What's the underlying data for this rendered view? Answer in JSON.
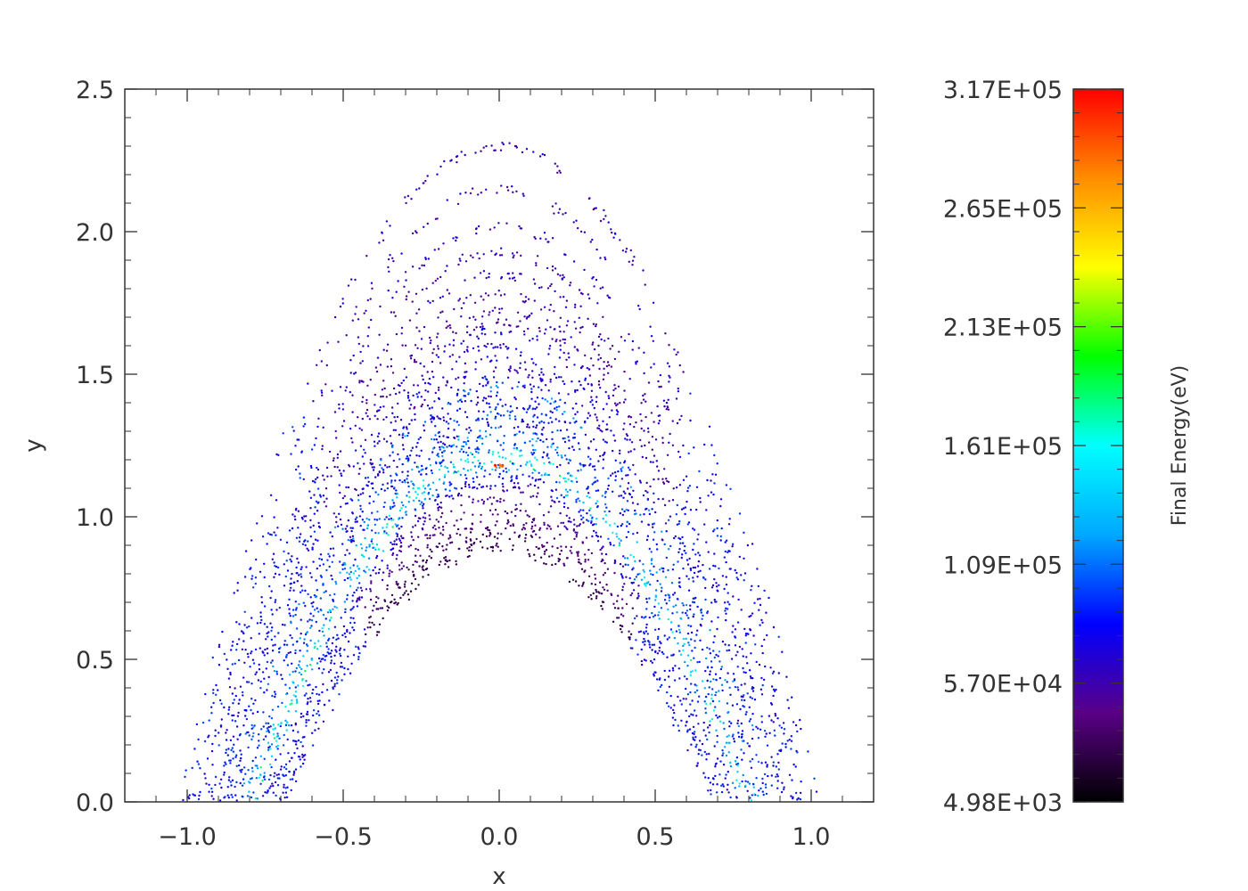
{
  "chart_data": {
    "type": "scatter",
    "xlabel": "x",
    "ylabel": "y",
    "xlim": [
      -1.2,
      1.2
    ],
    "ylim": [
      0.0,
      2.5
    ],
    "x_ticks": [
      "−1.0",
      "−0.5",
      "0.0",
      "0.5",
      "1.0"
    ],
    "x_tick_values": [
      -1.0,
      -0.5,
      0.0,
      0.5,
      1.0
    ],
    "y_ticks": [
      "0.0",
      "0.5",
      "1.0",
      "1.5",
      "2.0",
      "2.5"
    ],
    "y_tick_values": [
      0.0,
      0.5,
      1.0,
      1.5,
      2.0,
      2.5
    ],
    "grid": false,
    "colorbar": {
      "title": "Final Energy(eV)",
      "labels": [
        "4.98E+03",
        "5.70E+04",
        "1.09E+05",
        "1.61E+05",
        "2.13E+05",
        "2.65E+05",
        "3.17E+05"
      ],
      "values": [
        4980,
        57000,
        109000,
        161000,
        213000,
        265000,
        317000
      ],
      "range": [
        4980,
        317000
      ],
      "colormap": [
        "#000000",
        "#5a0087",
        "#0000ff",
        "#00a8ff",
        "#00ffff",
        "#00ff00",
        "#ffff00",
        "#ff8c00",
        "#ff0000"
      ]
    },
    "arcs": [
      {
        "apex_y": 2.3,
        "halfwidth": 1.02,
        "energy": 60000
      },
      {
        "apex_y": 2.15,
        "halfwidth": 1.0,
        "energy": 62000
      },
      {
        "apex_y": 2.02,
        "halfwidth": 0.99,
        "energy": 64000
      },
      {
        "apex_y": 1.93,
        "halfwidth": 0.98,
        "energy": 56000
      },
      {
        "apex_y": 1.85,
        "halfwidth": 0.97,
        "energy": 58000
      },
      {
        "apex_y": 1.78,
        "halfwidth": 0.96,
        "energy": 52000
      },
      {
        "apex_y": 1.72,
        "halfwidth": 0.95,
        "energy": 54000
      },
      {
        "apex_y": 1.68,
        "halfwidth": 0.94,
        "energy": 48000
      },
      {
        "apex_y": 1.65,
        "halfwidth": 0.93,
        "energy": 70000
      },
      {
        "apex_y": 1.6,
        "halfwidth": 0.92,
        "energy": 62000
      },
      {
        "apex_y": 1.56,
        "halfwidth": 0.91,
        "energy": 74000
      },
      {
        "apex_y": 1.52,
        "halfwidth": 0.9,
        "energy": 58000
      },
      {
        "apex_y": 1.48,
        "halfwidth": 0.89,
        "energy": 78000
      },
      {
        "apex_y": 1.45,
        "halfwidth": 0.88,
        "energy": 100000
      },
      {
        "apex_y": 1.42,
        "halfwidth": 0.87,
        "energy": 68000
      },
      {
        "apex_y": 1.39,
        "halfwidth": 0.86,
        "energy": 84000
      },
      {
        "apex_y": 1.36,
        "halfwidth": 0.85,
        "energy": 96000
      },
      {
        "apex_y": 1.33,
        "halfwidth": 0.84,
        "energy": 72000
      },
      {
        "apex_y": 1.3,
        "halfwidth": 0.83,
        "energy": 104000
      },
      {
        "apex_y": 1.28,
        "halfwidth": 0.82,
        "energy": 112000
      },
      {
        "apex_y": 1.25,
        "halfwidth": 0.81,
        "energy": 90000
      },
      {
        "apex_y": 1.23,
        "halfwidth": 0.8,
        "energy": 140000
      },
      {
        "apex_y": 1.2,
        "halfwidth": 0.79,
        "energy": 150000
      },
      {
        "apex_y": 1.18,
        "halfwidth": 0.78,
        "energy": 120000
      },
      {
        "apex_y": 1.15,
        "halfwidth": 0.77,
        "energy": 86000
      },
      {
        "apex_y": 1.12,
        "halfwidth": 0.76,
        "energy": 70000
      },
      {
        "apex_y": 1.1,
        "halfwidth": 0.75,
        "energy": 58000
      },
      {
        "apex_y": 1.06,
        "halfwidth": 0.74,
        "energy": 46000
      },
      {
        "apex_y": 1.02,
        "halfwidth": 0.73,
        "energy": 40000
      },
      {
        "apex_y": 0.98,
        "halfwidth": 0.72,
        "energy": 36000
      },
      {
        "apex_y": 0.95,
        "halfwidth": 0.71,
        "energy": 32000
      },
      {
        "apex_y": 0.92,
        "halfwidth": 0.7,
        "energy": 30000
      },
      {
        "apex_y": 0.89,
        "halfwidth": 0.69,
        "energy": 26000
      }
    ],
    "hotspot": {
      "x": 0.0,
      "y": 1.18,
      "energy": 317000
    }
  }
}
